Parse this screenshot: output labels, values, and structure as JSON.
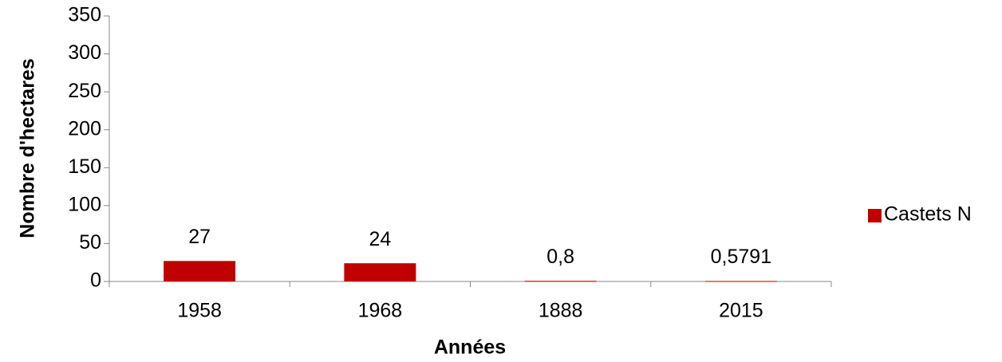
{
  "chart_data": {
    "type": "bar",
    "x_label": "Années",
    "y_label": "Nombre d'hectares",
    "categories": [
      "1958",
      "1968",
      "1888",
      "2015"
    ],
    "series": [
      {
        "name": "Castets N",
        "color": "#c00000",
        "values": [
          27,
          24,
          0.8,
          0.5791
        ],
        "value_labels": [
          "27",
          "24",
          "0,8",
          "0,5791"
        ]
      }
    ],
    "ylim": [
      0,
      350
    ],
    "yticks": [
      0,
      50,
      100,
      150,
      200,
      250,
      300,
      350
    ],
    "grid": false,
    "legend": "right"
  }
}
